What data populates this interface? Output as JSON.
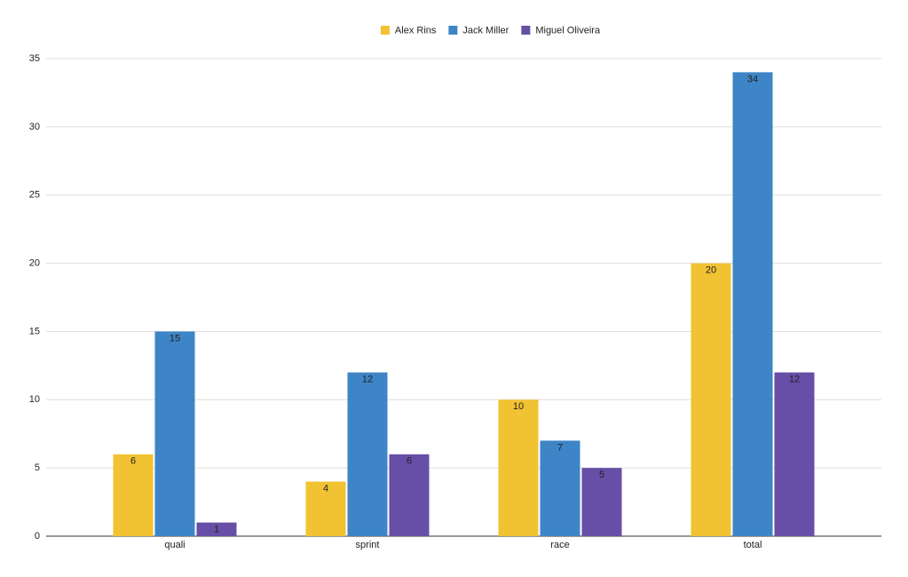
{
  "chart_data": {
    "type": "bar",
    "categories": [
      "quali",
      "sprint",
      "race",
      "total"
    ],
    "series": [
      {
        "name": "Alex Rins",
        "color": "#f1c232",
        "label_color": "#000000",
        "values": [
          6,
          4,
          10,
          20
        ]
      },
      {
        "name": "Jack Miller",
        "color": "#3d85c6",
        "label_color": "#ffffff",
        "values": [
          15,
          12,
          7,
          34
        ]
      },
      {
        "name": "Miguel Oliveira",
        "color": "#674ea7",
        "label_color": "#ffffff",
        "values": [
          1,
          6,
          5,
          12
        ]
      }
    ],
    "ylim": [
      0,
      35
    ],
    "yticks": [
      0,
      5,
      10,
      15,
      20,
      25,
      30,
      35
    ],
    "grid": true,
    "legend": "top"
  }
}
